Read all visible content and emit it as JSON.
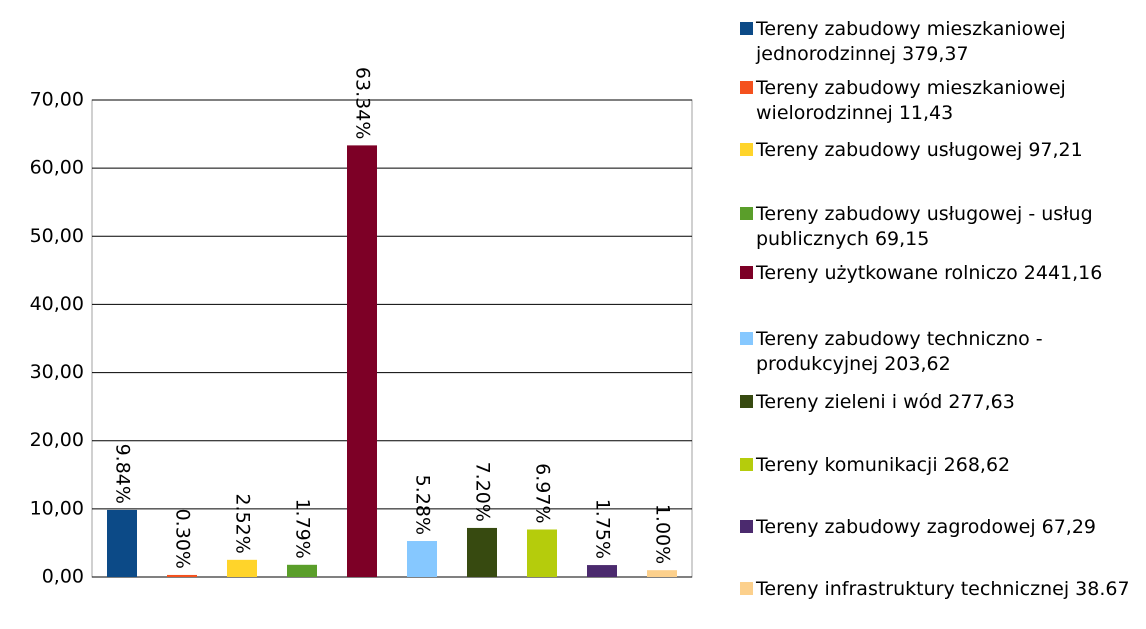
{
  "chart_data": {
    "type": "bar",
    "categories": [
      "Tereny zabudowy mieszkaniowej jednorodzinnej 379,37",
      "Tereny zabudowy mieszkaniowej wielorodzinnej 11,43",
      "Tereny zabudowy usługowej 97,21",
      "Tereny zabudowy usługowej - usług publicznych 69,15",
      "Tereny użytkowane rolniczo 2441,16",
      "Tereny zabudowy techniczno - produkcyjnej 203,62",
      "Tereny zieleni i wód 277,63",
      "Tereny komunikacji 268,62",
      "Tereny zabudowy zagrodowej 67,29",
      "Tereny infrastruktury technicznej 38.67"
    ],
    "values": [
      9.84,
      0.3,
      2.52,
      1.79,
      63.34,
      5.28,
      7.2,
      6.97,
      1.75,
      1.0
    ],
    "value_labels": [
      "9.84%",
      "0.30%",
      "2.52%",
      "1.79%",
      "63.34%",
      "5.28%",
      "7.20%",
      "6.97%",
      "1.75%",
      "1.00%"
    ],
    "colors": [
      "#0c4a87",
      "#f4511e",
      "#ffd42a",
      "#5a9e2a",
      "#7d0026",
      "#86c8ff",
      "#374a10",
      "#b5cc0c",
      "#4b2a6e",
      "#fcd08c"
    ],
    "ylim": [
      0,
      70
    ],
    "yticks": [
      {
        "value": 0,
        "label": "0,00"
      },
      {
        "value": 10,
        "label": "10,00"
      },
      {
        "value": 20,
        "label": "20,00"
      },
      {
        "value": 30,
        "label": "30,00"
      },
      {
        "value": 40,
        "label": "40,00"
      },
      {
        "value": 50,
        "label": "50,00"
      },
      {
        "value": 60,
        "label": "60,00"
      },
      {
        "value": 70,
        "label": "70,00"
      }
    ],
    "grid": true,
    "legend": "right"
  }
}
